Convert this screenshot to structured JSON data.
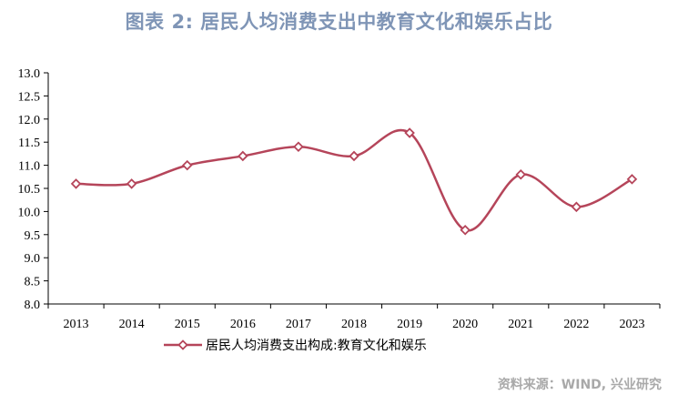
{
  "title": "图表 2:  居民人均消费支出中教育文化和娱乐占比",
  "source": "资料来源：WIND, 兴业研究",
  "colors": {
    "series": "#b5455a",
    "title": "#7f95b6",
    "axis": "#000000"
  },
  "chart_data": {
    "type": "line",
    "x": [
      "2013",
      "2014",
      "2015",
      "2016",
      "2017",
      "2018",
      "2019",
      "2020",
      "2021",
      "2022",
      "2023"
    ],
    "series": [
      {
        "name": "居民人均消费支出构成:教育文化和娱乐",
        "values": [
          10.6,
          10.6,
          11.0,
          11.2,
          11.4,
          11.2,
          11.7,
          9.6,
          10.8,
          10.1,
          10.7
        ]
      }
    ],
    "ylim": [
      8.0,
      13.0
    ],
    "yticks": [
      "8.0",
      "8.5",
      "9.0",
      "9.5",
      "10.0",
      "10.5",
      "11.0",
      "11.5",
      "12.0",
      "12.5",
      "13.0"
    ],
    "smooth": true,
    "marker": "diamond",
    "grid": false,
    "legend": "bottom"
  }
}
